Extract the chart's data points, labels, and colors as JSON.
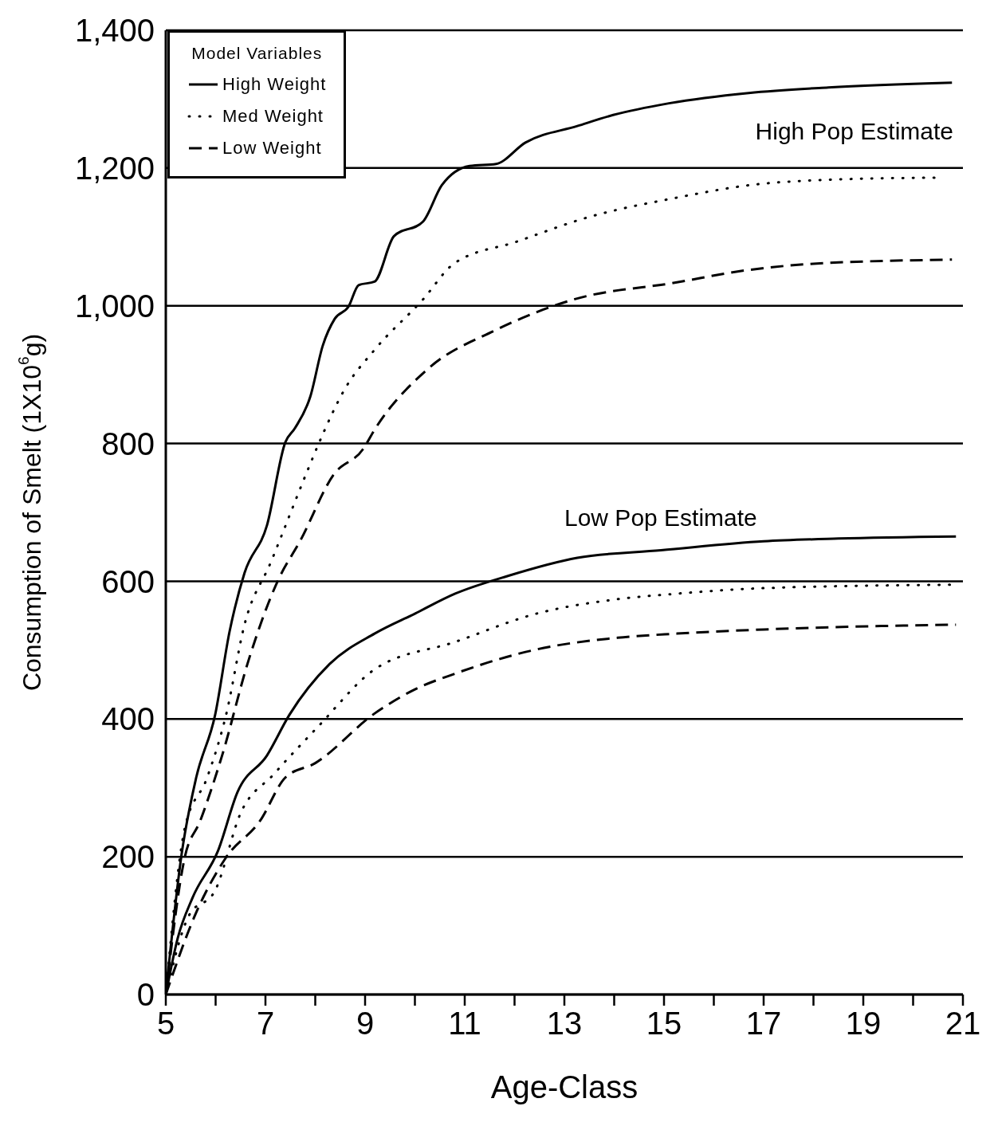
{
  "chart_data": {
    "type": "line",
    "xlabel": "Age-Class",
    "ylabel": "Consumption of Smelt (1X10$^{6}$g)",
    "legend_title": "Model Variables",
    "xlim": [
      5,
      21
    ],
    "xticks": [
      5,
      {
        "value": 6,
        "label": null
      },
      7,
      {
        "value": 8,
        "label": null
      },
      9,
      {
        "value": 10,
        "label": null
      },
      11,
      {
        "value": 12,
        "label": null
      },
      13,
      {
        "value": 14,
        "label": null
      },
      15,
      {
        "value": 16,
        "label": null
      },
      17,
      {
        "value": 18,
        "label": null
      },
      19,
      {
        "value": 20,
        "label": null
      },
      21
    ],
    "ylim": [
      0,
      1400
    ],
    "yticks": [
      0,
      200,
      400,
      600,
      800,
      {
        "value": 1000,
        "label": "1,000"
      },
      {
        "value": 1200,
        "label": "1,200"
      },
      {
        "value": 1400,
        "label": "1,400"
      }
    ],
    "grid": "y",
    "legend": "top left",
    "marker": "none",
    "annotations": [
      "High Pop Estimate",
      "Low Pop Estimate"
    ],
    "series": [
      {
        "name": "High Weight",
        "color": "#000000",
        "line_style": "solid",
        "x": [
          5,
          5.32,
          5.61,
          5.99,
          6.28,
          6.58,
          7.03,
          7.4,
          7.59,
          7.9,
          8.15,
          8.39,
          8.67,
          8.87,
          9.19,
          9.58,
          10.16,
          10.54,
          11.1,
          11.63,
          12.22,
          13.26,
          13.98,
          15.1,
          16.7,
          18.3,
          20.78
        ],
        "values": [
          0,
          205,
          315,
          406,
          527,
          612,
          681,
          802,
          822,
          868,
          942,
          981,
          999,
          1030,
          1035,
          1101,
          1122,
          1175,
          1203,
          1206,
          1237,
          1261,
          1277,
          1294,
          1309,
          1317,
          1324
        ]
      },
      {
        "name": "Med Weight",
        "color": "#000000",
        "line_style": "dotted",
        "x": [
          5,
          5.38,
          5.83,
          6.21,
          6.58,
          7.11,
          7.84,
          8.07,
          8.6,
          9.19,
          10.16,
          10.78,
          12.04,
          13.5,
          15.26,
          16.7,
          18.3,
          20.46
        ],
        "values": [
          0,
          241,
          315,
          406,
          537,
          628,
          760,
          800,
          880,
          936,
          1009,
          1061,
          1093,
          1129,
          1157,
          1175,
          1183,
          1186
        ]
      },
      {
        "name": "Low Weight",
        "color": "#000000",
        "line_style": "dashed",
        "x": [
          5,
          5.38,
          5.69,
          6.13,
          6.66,
          7.25,
          7.7,
          8.37,
          8.96,
          9.19,
          10.24,
          11.63,
          13.18,
          15.26,
          16.5,
          18.0,
          20.78
        ],
        "values": [
          0,
          199,
          252,
          347,
          485,
          601,
          659,
          755,
          792,
          820,
          907,
          965,
          1009,
          1034,
          1050,
          1061,
          1067
        ]
      },
      {
        "color": "#000000",
        "line_style": "solid",
        "x": [
          5,
          5.24,
          5.54,
          6.05,
          6.44,
          7.03,
          7.48,
          8.29,
          9.19,
          10.0,
          10.81,
          11.88,
          13.26,
          14.94,
          17.0,
          18.5,
          20.86
        ],
        "values": [
          0,
          82,
          141,
          209,
          294,
          347,
          406,
          480,
          524,
          553,
          582,
          608,
          634,
          645,
          658,
          662,
          665
        ]
      },
      {
        "color": "#000000",
        "line_style": "dotted",
        "x": [
          5,
          5.46,
          5.99,
          6.5,
          7.17,
          8.07,
          9.19,
          10.81,
          12.44,
          14.07,
          15.26,
          17.0,
          20.86
        ],
        "values": [
          0,
          114,
          151,
          263,
          320,
          390,
          472,
          512,
          553,
          574,
          582,
          590,
          595
        ]
      },
      {
        "color": "#000000",
        "line_style": "dashed",
        "x": [
          5,
          5.61,
          6.21,
          6.89,
          7.4,
          8.0,
          9.19,
          10.0,
          10.81,
          12.44,
          14.07,
          15.26,
          17.0,
          20.86
        ],
        "values": [
          0,
          119,
          199,
          252,
          315,
          336,
          408,
          443,
          466,
          501,
          518,
          524,
          530,
          537
        ]
      }
    ]
  }
}
